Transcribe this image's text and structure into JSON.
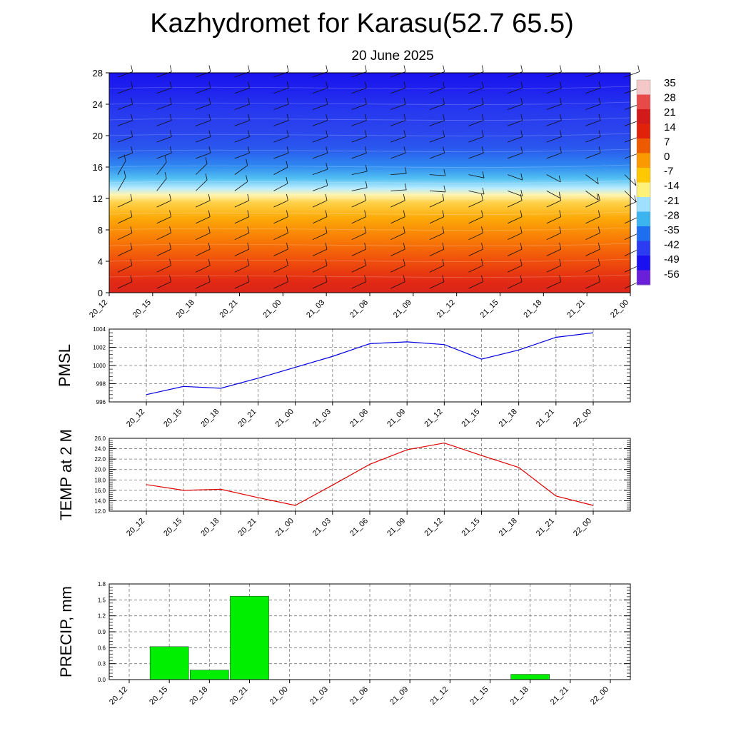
{
  "title": "Kazhydromet for Karasu(52.7 65.5)",
  "subtitle": "20 June 2025",
  "colors": {
    "pmsl_line": "#0000e0",
    "temp_line": "#e00000",
    "precip_bar": "#00ee00"
  },
  "chart_data": [
    {
      "type": "heatmap",
      "title": "",
      "x_ticks": [
        "20_12",
        "20_15",
        "20_18",
        "20_21",
        "21_00",
        "21_03",
        "21_06",
        "21_09",
        "21_12",
        "21_15",
        "21_18",
        "21_21",
        "22_00"
      ],
      "y_ticks": [
        "0",
        "4",
        "8",
        "12",
        "16",
        "20",
        "24",
        "28"
      ],
      "ylim": [
        0,
        28
      ],
      "colorbar_labels": [
        "35",
        "28",
        "21",
        "14",
        "7",
        "0",
        "-7",
        "-14",
        "-21",
        "-28",
        "-35",
        "-42",
        "-49",
        "-56"
      ],
      "colorbar_colors": [
        "#f4c8c8",
        "#e84a4a",
        "#d21a1a",
        "#e0220a",
        "#ee5a00",
        "#fb9a00",
        "#ffc800",
        "#fff07a",
        "#9fe0ff",
        "#3cb4f0",
        "#1e6ef0",
        "#2c3cf0",
        "#1a10f0",
        "#6a20d8"
      ],
      "wind_barbs": "wind barbs overlaid on grid"
    },
    {
      "type": "line",
      "ylabel": "PMSL",
      "x": [
        "20_12",
        "20_15",
        "20_18",
        "20_21",
        "21_00",
        "21_03",
        "21_06",
        "21_09",
        "21_12",
        "21_15",
        "21_18",
        "21_21",
        "22_00"
      ],
      "y_ticks": [
        "996",
        "998",
        "1000",
        "1002",
        "1004"
      ],
      "ylim": [
        996,
        1004
      ],
      "series": [
        {
          "values": [
            996.8,
            997.7,
            997.5,
            998.6,
            999.8,
            1001.0,
            1002.4,
            1002.6,
            1002.3,
            1000.7,
            1001.7,
            1003.1,
            1003.6
          ]
        }
      ],
      "grid": true
    },
    {
      "type": "line",
      "ylabel": "TEMP at 2 M",
      "x": [
        "20_12",
        "20_15",
        "20_18",
        "20_21",
        "21_00",
        "21_03",
        "21_06",
        "21_09",
        "21_12",
        "21_15",
        "21_18",
        "21_21",
        "22_00"
      ],
      "y_ticks": [
        "12.0",
        "14.0",
        "16.0",
        "18.0",
        "20.0",
        "22.0",
        "24.0",
        "26.0"
      ],
      "ylim": [
        12,
        26
      ],
      "series": [
        {
          "values": [
            17.1,
            16.0,
            16.2,
            14.6,
            13.1,
            17.0,
            21.0,
            23.8,
            25.1,
            22.7,
            20.4,
            14.9,
            13.1
          ]
        }
      ],
      "grid": true
    },
    {
      "type": "bar",
      "ylabel": "PRECIP, mm",
      "x": [
        "20_12",
        "20_15",
        "20_18",
        "20_21",
        "21_00",
        "21_03",
        "21_06",
        "21_09",
        "21_12",
        "21_15",
        "21_18",
        "21_21",
        "22_00"
      ],
      "y_ticks": [
        "0.0",
        "0.3",
        "0.6",
        "0.9",
        "1.2",
        "1.5",
        "1.8"
      ],
      "ylim": [
        0,
        1.8
      ],
      "values": [
        0,
        0.62,
        0.18,
        1.57,
        0,
        0,
        0,
        0,
        0,
        0,
        0.1,
        0,
        0
      ],
      "grid": true
    }
  ]
}
